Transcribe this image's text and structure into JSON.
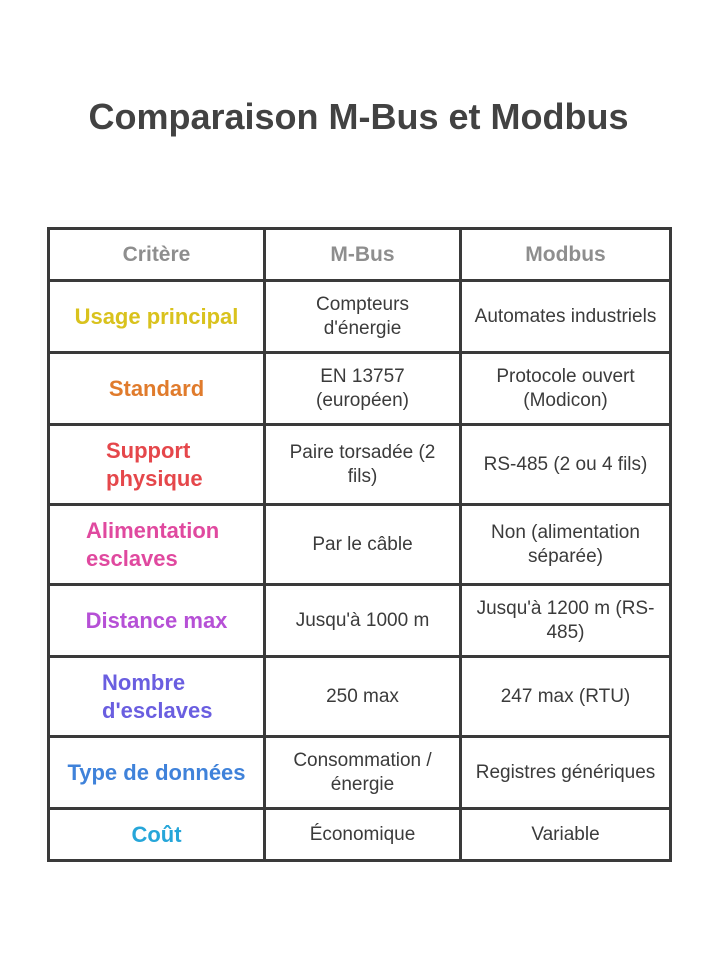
{
  "title": "Comparaison M-Bus et Modbus",
  "headers": [
    "Critère",
    "M-Bus",
    "Modbus"
  ],
  "rows": [
    {
      "criterion": "Usage principal",
      "color": "#d9c21d",
      "mbus": "Compteurs d'énergie",
      "modbus": "Automates industriels"
    },
    {
      "criterion": "Standard",
      "color": "#e07b2c",
      "mbus": "EN 13757 (européen)",
      "modbus": "Protocole ouvert (Modicon)"
    },
    {
      "criterion": "Support physique",
      "color": "#e5474b",
      "mbus": "Paire torsadée (2 fils)",
      "modbus": "RS-485 (2 ou 4 fils)"
    },
    {
      "criterion": "Alimentation esclaves",
      "color": "#e0499f",
      "mbus": "Par le câble",
      "modbus": "Non (alimentation séparée)"
    },
    {
      "criterion": "Distance max",
      "color": "#b650d6",
      "mbus": "Jusqu'à 1000 m",
      "modbus": "Jusqu'à 1200 m (RS-485)"
    },
    {
      "criterion": "Nombre d'esclaves",
      "color": "#6a5ee0",
      "mbus": "250 max",
      "modbus": "247 max (RTU)"
    },
    {
      "criterion": "Type de données",
      "color": "#3f82da",
      "mbus": "Consommation / énergie",
      "modbus": "Registres génériques"
    },
    {
      "criterion": "Coût",
      "color": "#26a6d9",
      "mbus": "Économique",
      "modbus": "Variable"
    }
  ]
}
